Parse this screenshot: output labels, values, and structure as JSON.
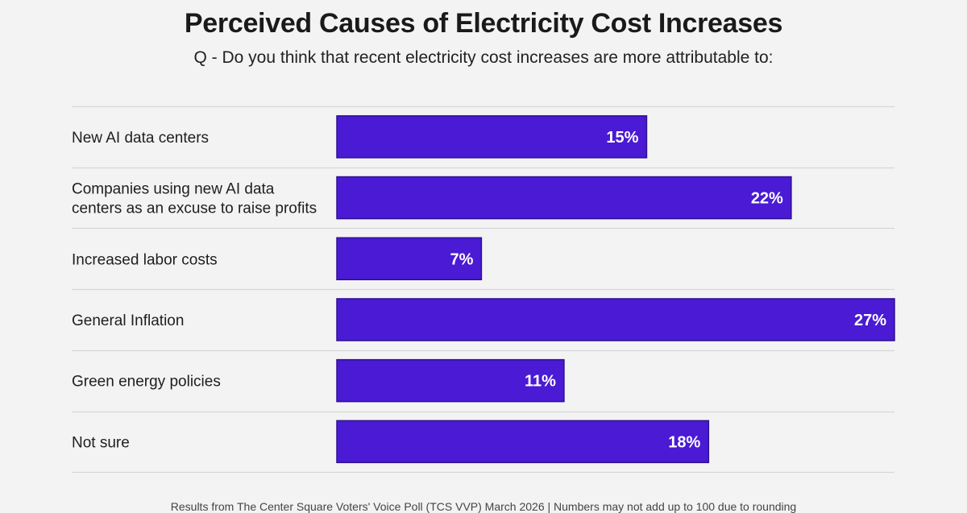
{
  "chart_data": {
    "type": "bar",
    "orientation": "horizontal",
    "title": "Perceived Causes of Electricity Cost Increases",
    "subtitle": "Q - Do you think that recent electricity cost increases are more attributable to:",
    "categories": [
      [
        "New AI data centers"
      ],
      [
        "Companies using new AI data",
        "centers as an excuse to raise profits"
      ],
      [
        "Increased labor costs"
      ],
      [
        "General Inflation"
      ],
      [
        "Green energy policies"
      ],
      [
        "Not sure"
      ]
    ],
    "values": [
      15,
      22,
      7,
      27,
      11,
      18
    ],
    "value_labels": [
      "15%",
      "22%",
      "7%",
      "27%",
      "11%",
      "18%"
    ],
    "unit": "%",
    "xlim": [
      0,
      27
    ],
    "grid": false,
    "legend": "none",
    "xlabel": "",
    "ylabel": "",
    "footer": "Results from The Center Square Voters' Voice Poll (TCS VVP) March 2026 | Numbers may not add up to 100 due to rounding"
  },
  "colors": {
    "bar": "#4a1ad4",
    "bar_border": "#2e1190",
    "bar_label": "#ffffff",
    "divider": "#d6d6d8",
    "background": "#f3f3f4"
  }
}
